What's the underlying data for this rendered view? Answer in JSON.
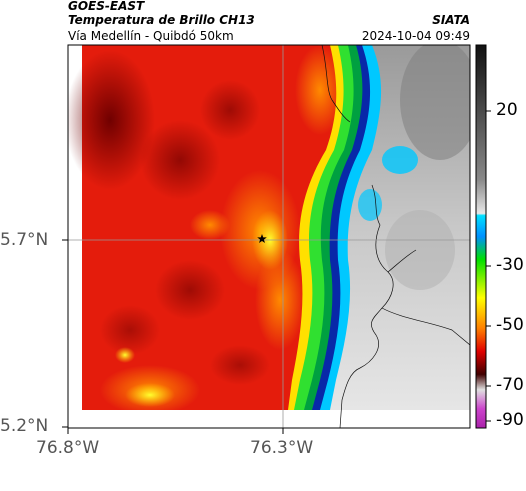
{
  "header": {
    "satellite": "GOES-EAST",
    "product": "Temperatura de Brillo CH13",
    "region": "Vía Medellín - Quibdó 50km",
    "organization": "SIATA",
    "datetime": "2024-10-04 09:49"
  },
  "axes": {
    "y_ticks": [
      "5.7°N",
      "5.2°N"
    ],
    "x_ticks": [
      "76.8°W",
      "76.3°W"
    ]
  },
  "colorbar": {
    "ticks": [
      "20",
      "-30",
      "-50",
      "-70",
      "-90"
    ],
    "stops": [
      "#111111",
      "#777777",
      "#dddddd",
      "#00bcd4",
      "#00e000",
      "#ffff00",
      "#ff8000",
      "#e00000",
      "#400000",
      "#e0e0e0",
      "#cc44cc"
    ]
  },
  "map": {
    "marker": "star-icon",
    "colors": {
      "cold_cloud": "#c8c8c8",
      "warm": "#e8180c",
      "hot": "#a00000",
      "edge_yellow": "#ffff40",
      "edge_green": "#20e020",
      "edge_cyan": "#00c8ff",
      "edge_blue": "#0820a0"
    }
  }
}
